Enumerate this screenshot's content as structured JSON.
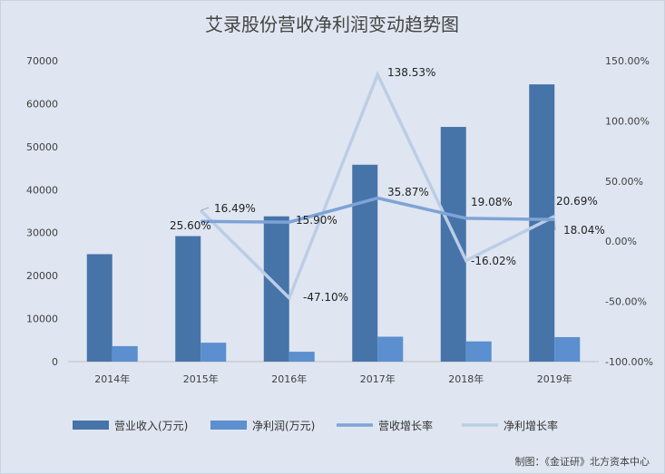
{
  "chart_data": {
    "type": "bar",
    "title": "艾录股份营收净利润变动趋势图",
    "categories": [
      "2014年",
      "2015年",
      "2016年",
      "2017年",
      "2018年",
      "2019年"
    ],
    "left_axis": {
      "ylim": [
        0,
        70000
      ],
      "ticks": [
        "0",
        "10000",
        "20000",
        "30000",
        "40000",
        "50000",
        "60000",
        "70000"
      ]
    },
    "right_axis": {
      "ylim": [
        -100,
        150
      ],
      "ticks": [
        "-100.00%",
        "-50.00%",
        "0.00%",
        "50.00%",
        "100.00%",
        "150.00%"
      ]
    },
    "series": [
      {
        "name": "营业收入(万元)",
        "type": "bar",
        "axis": "left",
        "color": "#4674a9",
        "values": [
          25000,
          29200,
          33800,
          45800,
          54600,
          64500
        ]
      },
      {
        "name": "净利润(万元)",
        "type": "bar",
        "axis": "left",
        "color": "#5b8fcf",
        "values": [
          3600,
          4400,
          2300,
          5800,
          4700,
          5700
        ]
      },
      {
        "name": "营收增长率",
        "type": "line",
        "axis": "right",
        "color": "#7fa3d6",
        "values": [
          null,
          16.49,
          15.9,
          35.87,
          19.08,
          18.04
        ],
        "labels": [
          "",
          "16.49%",
          "15.90%",
          "35.87%",
          "19.08%",
          "18.04%"
        ]
      },
      {
        "name": "净利增长率",
        "type": "line",
        "axis": "right",
        "color": "#bccde6",
        "values": [
          null,
          25.6,
          -47.1,
          138.53,
          -16.02,
          20.69
        ],
        "labels": [
          "",
          "25.60%",
          "-47.10%",
          "138.53%",
          "-16.02%",
          "20.69%"
        ]
      }
    ],
    "legend_position": "bottom",
    "grid": false
  },
  "credit": "制图：《金证研》北方资本中心"
}
